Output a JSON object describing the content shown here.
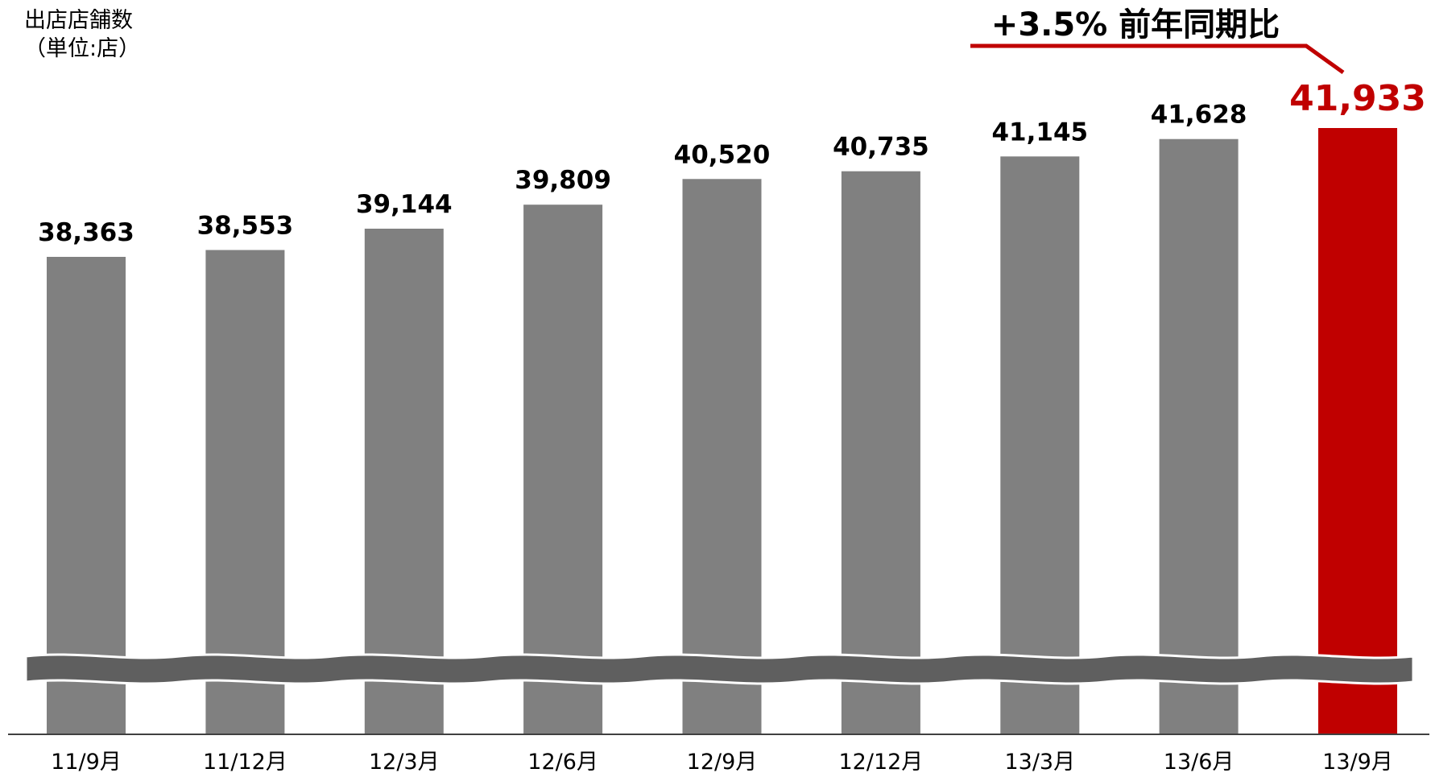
{
  "y_label_line1": "出店店舗数",
  "y_label_line2": "（単位:店）",
  "colors": {
    "bar": "#808080",
    "highlight": "#c00000",
    "break_band": "#5f5f5f",
    "axis": "#404040",
    "text": "#000000"
  },
  "chart_data": {
    "type": "bar",
    "categories": [
      "11/9月",
      "11/12月",
      "12/3月",
      "12/6月",
      "12/9月",
      "12/12月",
      "13/3月",
      "13/6月",
      "13/9月"
    ],
    "values": [
      38363,
      38553,
      39144,
      39809,
      40520,
      40735,
      41145,
      41628,
      41933
    ],
    "value_labels": [
      "38,363",
      "38,553",
      "39,144",
      "39,809",
      "40,520",
      "40,735",
      "41,145",
      "41,628",
      "41,933"
    ],
    "highlight_index": 8,
    "axis_break": true,
    "annotation": "+3.5% 前年同期比",
    "grid": false,
    "legend": "none"
  }
}
